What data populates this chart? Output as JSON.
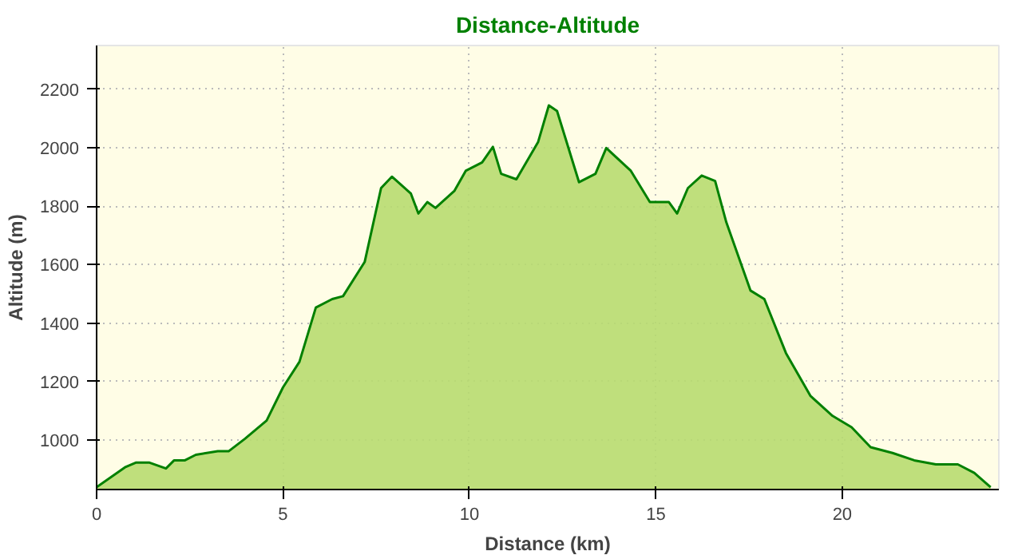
{
  "chart_data": {
    "type": "area",
    "title": "Distance-Altitude",
    "xlabel": "Distance (km)",
    "ylabel": "Altitude (m)",
    "x": [
      0,
      0.76,
      1.05,
      1.42,
      1.86,
      2.08,
      2.37,
      2.66,
      3.25,
      3.54,
      3.98,
      4.56,
      5.0,
      5.44,
      5.88,
      6.32,
      6.61,
      7.19,
      7.63,
      7.92,
      8.43,
      8.63,
      8.87,
      9.09,
      9.6,
      9.9,
      10.34,
      10.63,
      10.85,
      11.26,
      11.84,
      12.13,
      12.35,
      12.94,
      13.38,
      13.67,
      14.33,
      14.84,
      15.35,
      15.57,
      15.86,
      16.23,
      16.59,
      16.89,
      17.54,
      17.91,
      18.49,
      19.15,
      19.74,
      20.25,
      20.76,
      21.35,
      21.93,
      22.51,
      23.1,
      23.54,
      23.98
    ],
    "series": [
      {
        "color": "#008000",
        "values": [
          838,
          906,
          922,
          922,
          902,
          930,
          930,
          949,
          961,
          961,
          1004,
          1066,
          1180,
          1267,
          1453,
          1482,
          1492,
          1609,
          1862,
          1901,
          1843,
          1775,
          1814,
          1794,
          1853,
          1921,
          1950,
          2003,
          1911,
          1892,
          2019,
          2145,
          2126,
          1882,
          1911,
          1999,
          1921,
          1814,
          1814,
          1775,
          1862,
          1905,
          1886,
          1745,
          1511,
          1482,
          1297,
          1150,
          1082,
          1043,
          975,
          955,
          930,
          916,
          916,
          887,
          838
        ]
      }
    ],
    "xlim": [
      0,
      24.2
    ],
    "ylim": [
      830,
      2350
    ],
    "xticks": [
      0,
      5,
      10,
      15,
      20
    ],
    "yticks": [
      1000,
      1200,
      1400,
      1600,
      1800,
      2000,
      2200
    ],
    "grid": true
  }
}
